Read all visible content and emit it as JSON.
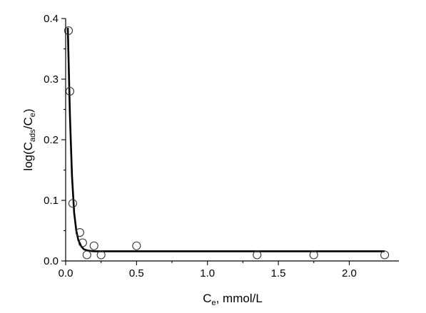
{
  "chart_data": {
    "type": "scatter",
    "xlabel": {
      "main": "C",
      "sub": "e",
      "rest": ", mmol/L"
    },
    "ylabel": {
      "pre": "log(C",
      "sub1": "ads",
      "mid": "/C",
      "sub2": "e",
      "post": ")"
    },
    "xlim": [
      0,
      2.35
    ],
    "ylim": [
      0,
      0.4
    ],
    "x_ticks": [
      "0.0",
      "0.5",
      "1.0",
      "1.5",
      "2.0"
    ],
    "x_tick_values": [
      0,
      0.5,
      1.0,
      1.5,
      2.0
    ],
    "y_ticks": [
      "0.0",
      "0.1",
      "0.2",
      "0.3",
      "0.4"
    ],
    "y_tick_values": [
      0,
      0.1,
      0.2,
      0.3,
      0.4
    ],
    "grid": false,
    "series": [
      {
        "kind": "points",
        "marker": "open-circle",
        "x": [
          0.02,
          0.03,
          0.05,
          0.1,
          0.12,
          0.15,
          0.2,
          0.25,
          0.5,
          1.35,
          1.75,
          2.25
        ],
        "y": [
          0.38,
          0.28,
          0.095,
          0.047,
          0.03,
          0.01,
          0.025,
          0.01,
          0.025,
          0.01,
          0.01,
          0.01
        ]
      },
      {
        "kind": "fit-line",
        "x": [
          0.015,
          0.03,
          0.045,
          0.06,
          0.075,
          0.09,
          0.11,
          0.13,
          0.16,
          0.2,
          0.3,
          0.5,
          1.0,
          1.5,
          2.0,
          2.25
        ],
        "y": [
          0.385,
          0.24,
          0.14,
          0.08,
          0.05,
          0.034,
          0.024,
          0.019,
          0.017,
          0.016,
          0.016,
          0.016,
          0.016,
          0.016,
          0.016,
          0.016
        ]
      }
    ]
  }
}
